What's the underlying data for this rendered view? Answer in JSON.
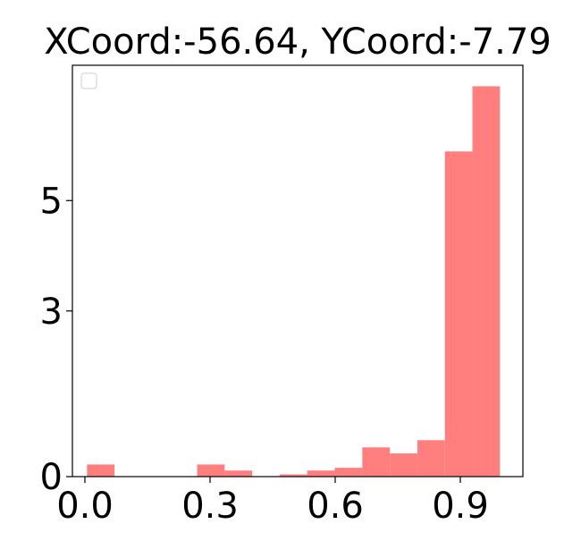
{
  "chart_data": {
    "type": "bar",
    "title": "XCoord:-56.64, YCoord:-7.79",
    "xlabel": "",
    "ylabel": "",
    "xlim": [
      -0.03,
      1.05
    ],
    "ylim": [
      0,
      7.45
    ],
    "xticks": [
      {
        "value": 0.0,
        "label": "0.0"
      },
      {
        "value": 0.3,
        "label": "0.3"
      },
      {
        "value": 0.6,
        "label": "0.6"
      },
      {
        "value": 0.9,
        "label": "0.9"
      }
    ],
    "yticks": [
      {
        "value": 0,
        "label": "0"
      },
      {
        "value": 3,
        "label": "3"
      },
      {
        "value": 5,
        "label": "5"
      }
    ],
    "bin_edges": [
      0.005,
      0.071,
      0.137,
      0.203,
      0.269,
      0.335,
      0.401,
      0.467,
      0.533,
      0.599,
      0.665,
      0.731,
      0.797,
      0.863,
      0.929,
      0.995
    ],
    "values": [
      0.22,
      0,
      0,
      0,
      0.22,
      0.11,
      0,
      0.04,
      0.11,
      0.16,
      0.53,
      0.42,
      0.66,
      5.89,
      7.07
    ],
    "bar_color": "#ff7f7f",
    "grid": false,
    "legend": {
      "position": "top-left",
      "entries": []
    }
  }
}
